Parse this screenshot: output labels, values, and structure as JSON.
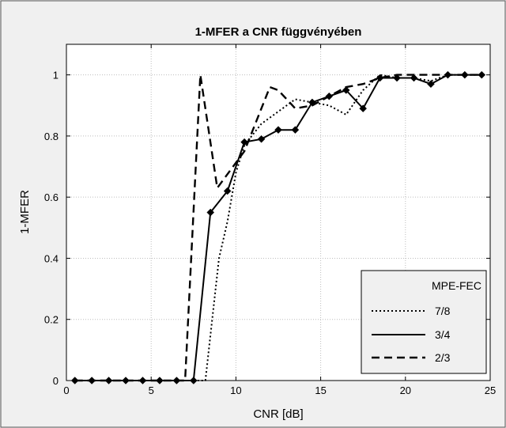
{
  "chart_data": {
    "type": "line",
    "title": "1-MFER a CNR függvényében",
    "xlabel": "CNR [dB]",
    "ylabel": "1-MFER",
    "xlim": [
      0,
      25
    ],
    "ylim": [
      0,
      1.1
    ],
    "xticks": [
      0,
      5,
      10,
      15,
      20,
      25
    ],
    "yticks": [
      0,
      0.2,
      0.4,
      0.6,
      0.8,
      1
    ],
    "ytick_labels": [
      "0",
      "0.2",
      "0.4",
      "0.6",
      "0.8",
      "1"
    ],
    "grid": true,
    "legend": {
      "title": "MPE-FEC",
      "placement": "bottom-right"
    },
    "series": [
      {
        "name": "7/8",
        "style": "dotted",
        "marker": "none",
        "x": [
          0.5,
          1.5,
          2.5,
          3.5,
          4.5,
          5.5,
          6.5,
          7.5,
          8.2,
          8.6,
          9.0,
          9.5,
          10.0,
          10.5,
          11.5,
          12.5,
          13.5,
          14.5,
          15.5,
          16.5,
          17.5,
          18.5,
          19.5,
          20.5,
          21.5,
          22.5,
          23.5,
          24.5
        ],
        "y": [
          0,
          0,
          0,
          0,
          0,
          0,
          0,
          0,
          0,
          0.2,
          0.4,
          0.52,
          0.68,
          0.77,
          0.84,
          0.88,
          0.92,
          0.91,
          0.9,
          0.87,
          0.95,
          1.0,
          0.99,
          0.99,
          0.98,
          1.0,
          1.0,
          1.0
        ]
      },
      {
        "name": "3/4",
        "style": "solid",
        "marker": "diamond",
        "x": [
          0.5,
          1.5,
          2.5,
          3.5,
          4.5,
          5.5,
          6.5,
          7.5,
          8.5,
          9.5,
          10.5,
          11.5,
          12.5,
          13.5,
          14.5,
          15.5,
          16.5,
          17.5,
          18.5,
          19.5,
          20.5,
          21.5,
          22.5,
          23.5,
          24.5
        ],
        "y": [
          0,
          0,
          0,
          0,
          0,
          0,
          0,
          0,
          0.55,
          0.62,
          0.78,
          0.79,
          0.82,
          0.82,
          0.91,
          0.93,
          0.95,
          0.89,
          0.99,
          0.99,
          0.99,
          0.97,
          1.0,
          1.0,
          1.0
        ]
      },
      {
        "name": "2/3",
        "style": "dashed",
        "marker": "none",
        "x": [
          0.5,
          1.5,
          2.5,
          3.5,
          4.5,
          5.5,
          6.5,
          7.0,
          7.9,
          8.9,
          10.5,
          11.5,
          12.0,
          12.5,
          13.5,
          14.5,
          15.5,
          16.5,
          17.5,
          18.5,
          19.5,
          20.5,
          21.5,
          22.5,
          23.5,
          24.5
        ],
        "y": [
          0,
          0,
          0,
          0,
          0,
          0,
          0,
          0,
          1.0,
          0.63,
          0.75,
          0.89,
          0.96,
          0.95,
          0.89,
          0.9,
          0.93,
          0.96,
          0.97,
          0.99,
          1.0,
          1.0,
          1.0,
          1.0,
          1.0,
          1.0
        ]
      }
    ]
  }
}
